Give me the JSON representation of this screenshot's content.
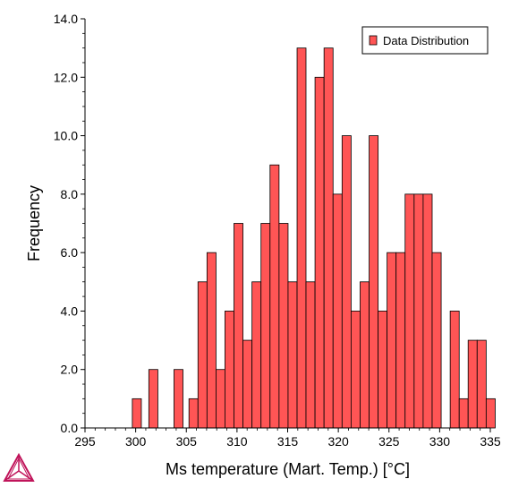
{
  "chart_data": {
    "type": "bar",
    "xlabel": "Ms temperature (Mart. Temp.) [°C]",
    "ylabel": "Frequency",
    "xlim": [
      295,
      335
    ],
    "ylim": [
      0,
      14
    ],
    "x_ticks": [
      "295",
      "300",
      "305",
      "310",
      "315",
      "320",
      "325",
      "330",
      "335"
    ],
    "y_ticks": [
      "0.0",
      "2.0",
      "4.0",
      "6.0",
      "8.0",
      "10.0",
      "12.0",
      "14.0"
    ],
    "legend_position": "top-right",
    "grid": false,
    "series": [
      {
        "name": "Data Distribution",
        "color": "#FF5555",
        "bins": [
          {
            "x0": 299.67,
            "x1": 300.56,
            "count": 1
          },
          {
            "x0": 301.3,
            "x1": 302.19,
            "count": 2
          },
          {
            "x0": 303.78,
            "x1": 304.67,
            "count": 2
          },
          {
            "x0": 305.26,
            "x1": 306.15,
            "count": 1
          },
          {
            "x0": 306.15,
            "x1": 307.04,
            "count": 5
          },
          {
            "x0": 307.04,
            "x1": 307.93,
            "count": 6
          },
          {
            "x0": 307.93,
            "x1": 308.81,
            "count": 2
          },
          {
            "x0": 308.81,
            "x1": 309.7,
            "count": 4
          },
          {
            "x0": 309.7,
            "x1": 310.59,
            "count": 7
          },
          {
            "x0": 310.59,
            "x1": 311.48,
            "count": 3
          },
          {
            "x0": 311.48,
            "x1": 312.37,
            "count": 5
          },
          {
            "x0": 312.37,
            "x1": 313.26,
            "count": 7
          },
          {
            "x0": 313.26,
            "x1": 314.15,
            "count": 9
          },
          {
            "x0": 314.15,
            "x1": 315.04,
            "count": 7
          },
          {
            "x0": 315.04,
            "x1": 315.93,
            "count": 5
          },
          {
            "x0": 315.93,
            "x1": 316.81,
            "count": 13
          },
          {
            "x0": 316.81,
            "x1": 317.7,
            "count": 5
          },
          {
            "x0": 317.7,
            "x1": 318.59,
            "count": 12
          },
          {
            "x0": 318.59,
            "x1": 319.48,
            "count": 13
          },
          {
            "x0": 319.48,
            "x1": 320.37,
            "count": 8
          },
          {
            "x0": 320.37,
            "x1": 321.26,
            "count": 10
          },
          {
            "x0": 321.26,
            "x1": 322.15,
            "count": 4
          },
          {
            "x0": 322.15,
            "x1": 323.04,
            "count": 5
          },
          {
            "x0": 323.04,
            "x1": 323.93,
            "count": 10
          },
          {
            "x0": 323.93,
            "x1": 324.81,
            "count": 4
          },
          {
            "x0": 324.81,
            "x1": 325.7,
            "count": 6
          },
          {
            "x0": 325.7,
            "x1": 326.59,
            "count": 6
          },
          {
            "x0": 326.59,
            "x1": 327.48,
            "count": 8
          },
          {
            "x0": 327.48,
            "x1": 328.37,
            "count": 8
          },
          {
            "x0": 328.37,
            "x1": 329.26,
            "count": 8
          },
          {
            "x0": 329.26,
            "x1": 330.15,
            "count": 6
          },
          {
            "x0": 331.04,
            "x1": 331.93,
            "count": 4
          },
          {
            "x0": 331.93,
            "x1": 332.81,
            "count": 1
          },
          {
            "x0": 332.81,
            "x1": 333.7,
            "count": 3
          },
          {
            "x0": 333.7,
            "x1": 334.59,
            "count": 3
          },
          {
            "x0": 334.59,
            "x1": 335.48,
            "count": 1
          }
        ]
      }
    ]
  },
  "logo": {
    "name": "triangle-logo-icon",
    "color": "#c0145a"
  }
}
